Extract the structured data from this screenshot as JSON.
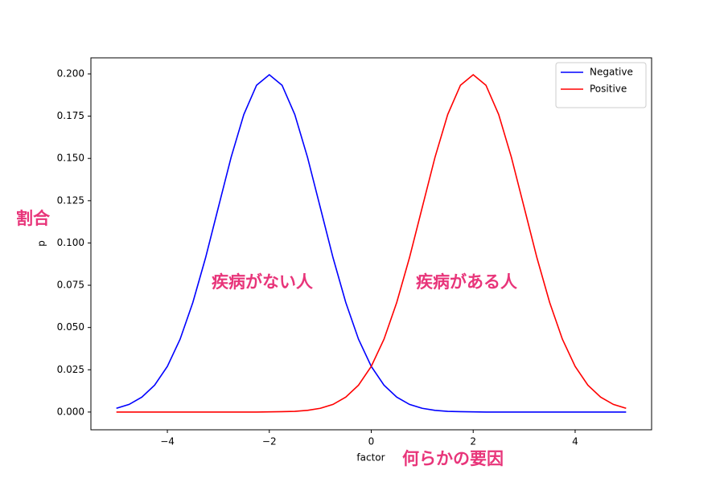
{
  "chart_data": {
    "type": "line",
    "xlabel": "factor",
    "ylabel": "p",
    "x": [
      -5,
      -4.75,
      -4.5,
      -4.25,
      -4,
      -3.75,
      -3.5,
      -3.25,
      -3,
      -2.75,
      -2.5,
      -2.25,
      -2,
      -1.75,
      -1.5,
      -1.25,
      -1,
      -0.75,
      -0.5,
      -0.25,
      0,
      0.25,
      0.5,
      0.75,
      1,
      1.25,
      1.5,
      1.75,
      2,
      2.25,
      2.5,
      2.75,
      3,
      3.25,
      3.5,
      3.75,
      4,
      4.25,
      4.5,
      4.75,
      5
    ],
    "series": [
      {
        "name": "Negative",
        "color": "#0000ff",
        "values": [
          0.0022,
          0.0045,
          0.0088,
          0.0159,
          0.027,
          0.0431,
          0.0648,
          0.0913,
          0.121,
          0.1506,
          0.176,
          0.1933,
          0.1995,
          0.1933,
          0.176,
          0.1506,
          0.121,
          0.0913,
          0.0648,
          0.0431,
          0.027,
          0.0159,
          0.0088,
          0.0045,
          0.0022,
          0.001,
          0.0004,
          0.0002,
          0.0001,
          0,
          0,
          0,
          0,
          0,
          0,
          0,
          0,
          0,
          0,
          0,
          0
        ]
      },
      {
        "name": "Positive",
        "color": "#ff0000",
        "values": [
          0,
          0,
          0,
          0,
          0,
          0,
          0,
          0,
          0,
          0,
          0,
          0,
          0.0001,
          0.0002,
          0.0004,
          0.001,
          0.0022,
          0.0045,
          0.0088,
          0.0159,
          0.027,
          0.0431,
          0.0648,
          0.0913,
          0.121,
          0.1506,
          0.176,
          0.1933,
          0.1995,
          0.1933,
          0.176,
          0.1506,
          0.121,
          0.0913,
          0.0648,
          0.0431,
          0.027,
          0.0159,
          0.0088,
          0.0045,
          0.0022
        ]
      }
    ],
    "xlim": [
      -5.5,
      5.5
    ],
    "ylim": [
      -0.0105,
      0.2095
    ],
    "xticks": [
      {
        "value": -4,
        "label": "−4"
      },
      {
        "value": -2,
        "label": "−2"
      },
      0,
      2,
      4
    ],
    "yticks": [
      {
        "value": 0,
        "label": "0.000"
      },
      {
        "value": 0.025,
        "label": "0.025"
      },
      {
        "value": 0.05,
        "label": "0.050"
      },
      {
        "value": 0.075,
        "label": "0.075"
      },
      {
        "value": 0.1,
        "label": "0.100"
      },
      {
        "value": 0.125,
        "label": "0.125"
      },
      {
        "value": 0.15,
        "label": "0.150"
      },
      {
        "value": 0.175,
        "label": "0.175"
      },
      {
        "value": 0.2,
        "label": "0.200"
      }
    ],
    "legend": "upper right",
    "annotations": [
      "割合",
      "疾病がない人",
      "疾病がある人",
      "何らかの要因"
    ]
  }
}
